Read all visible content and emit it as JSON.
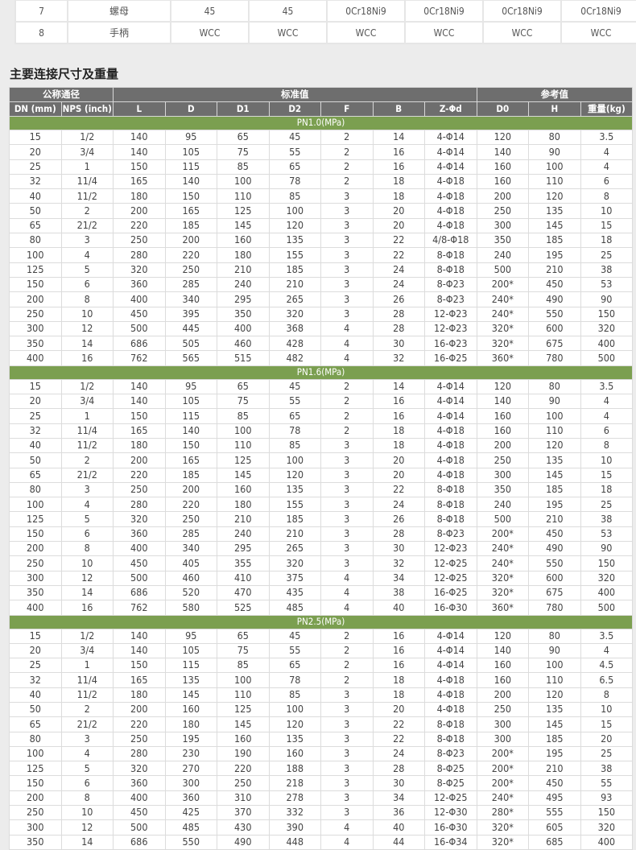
{
  "materials": {
    "rows": [
      [
        "7",
        "螺母",
        "45",
        "45",
        "0Cr18Ni9",
        "0Cr18Ni9",
        "0Cr18Ni9",
        "0Cr18Ni9"
      ],
      [
        "8",
        "手柄",
        "WCC",
        "WCC",
        "WCC",
        "WCC",
        "WCC",
        "WCC"
      ]
    ]
  },
  "section_title": "主要连接尺寸及重量",
  "dimensions": {
    "group_headers": {
      "nominal": "公称通径",
      "standard": "标准值",
      "reference": "参考值"
    },
    "columns": [
      "DN (mm)",
      "NPS (inch)",
      "L",
      "D",
      "D1",
      "D2",
      "F",
      "B",
      "Z-Φd",
      "D0",
      "H",
      "重量(kg)"
    ],
    "sections": [
      {
        "label": "PN1.0(MPa)",
        "rows": [
          [
            "15",
            "1/2",
            "140",
            "95",
            "65",
            "45",
            "2",
            "14",
            "4-Φ14",
            "120",
            "80",
            "3.5"
          ],
          [
            "20",
            "3/4",
            "140",
            "105",
            "75",
            "55",
            "2",
            "16",
            "4-Φ14",
            "140",
            "90",
            "4"
          ],
          [
            "25",
            "1",
            "150",
            "115",
            "85",
            "65",
            "2",
            "16",
            "4-Φ14",
            "160",
            "100",
            "4"
          ],
          [
            "32",
            "11/4",
            "165",
            "140",
            "100",
            "78",
            "2",
            "18",
            "4-Φ18",
            "160",
            "110",
            "6"
          ],
          [
            "40",
            "11/2",
            "180",
            "150",
            "110",
            "85",
            "3",
            "18",
            "4-Φ18",
            "200",
            "120",
            "8"
          ],
          [
            "50",
            "2",
            "200",
            "165",
            "125",
            "100",
            "3",
            "20",
            "4-Φ18",
            "250",
            "135",
            "10"
          ],
          [
            "65",
            "21/2",
            "220",
            "185",
            "145",
            "120",
            "3",
            "20",
            "4-Φ18",
            "300",
            "145",
            "15"
          ],
          [
            "80",
            "3",
            "250",
            "200",
            "160",
            "135",
            "3",
            "22",
            "4/8-Φ18",
            "350",
            "185",
            "18"
          ],
          [
            "100",
            "4",
            "280",
            "220",
            "180",
            "155",
            "3",
            "22",
            "8-Φ18",
            "240",
            "195",
            "25"
          ],
          [
            "125",
            "5",
            "320",
            "250",
            "210",
            "185",
            "3",
            "24",
            "8-Φ18",
            "500",
            "210",
            "38"
          ],
          [
            "150",
            "6",
            "360",
            "285",
            "240",
            "210",
            "3",
            "24",
            "8-Φ23",
            "200*",
            "450",
            "53"
          ],
          [
            "200",
            "8",
            "400",
            "340",
            "295",
            "265",
            "3",
            "26",
            "8-Φ23",
            "240*",
            "490",
            "90"
          ],
          [
            "250",
            "10",
            "450",
            "395",
            "350",
            "320",
            "3",
            "28",
            "12-Φ23",
            "240*",
            "550",
            "150"
          ],
          [
            "300",
            "12",
            "500",
            "445",
            "400",
            "368",
            "4",
            "28",
            "12-Φ23",
            "320*",
            "600",
            "320"
          ],
          [
            "350",
            "14",
            "686",
            "505",
            "460",
            "428",
            "4",
            "30",
            "16-Φ23",
            "320*",
            "675",
            "400"
          ],
          [
            "400",
            "16",
            "762",
            "565",
            "515",
            "482",
            "4",
            "32",
            "16-Φ25",
            "360*",
            "780",
            "500"
          ]
        ]
      },
      {
        "label": "PN1.6(MPa)",
        "rows": [
          [
            "15",
            "1/2",
            "140",
            "95",
            "65",
            "45",
            "2",
            "14",
            "4-Φ14",
            "120",
            "80",
            "3.5"
          ],
          [
            "20",
            "3/4",
            "140",
            "105",
            "75",
            "55",
            "2",
            "16",
            "4-Φ14",
            "140",
            "90",
            "4"
          ],
          [
            "25",
            "1",
            "150",
            "115",
            "85",
            "65",
            "2",
            "16",
            "4-Φ14",
            "160",
            "100",
            "4"
          ],
          [
            "32",
            "11/4",
            "165",
            "140",
            "100",
            "78",
            "2",
            "18",
            "4-Φ18",
            "160",
            "110",
            "6"
          ],
          [
            "40",
            "11/2",
            "180",
            "150",
            "110",
            "85",
            "3",
            "18",
            "4-Φ18",
            "200",
            "120",
            "8"
          ],
          [
            "50",
            "2",
            "200",
            "165",
            "125",
            "100",
            "3",
            "20",
            "4-Φ18",
            "250",
            "135",
            "10"
          ],
          [
            "65",
            "21/2",
            "220",
            "185",
            "145",
            "120",
            "3",
            "20",
            "4-Φ18",
            "300",
            "145",
            "15"
          ],
          [
            "80",
            "3",
            "250",
            "200",
            "160",
            "135",
            "3",
            "22",
            "8-Φ18",
            "350",
            "185",
            "18"
          ],
          [
            "100",
            "4",
            "280",
            "220",
            "180",
            "155",
            "3",
            "24",
            "8-Φ18",
            "240",
            "195",
            "25"
          ],
          [
            "125",
            "5",
            "320",
            "250",
            "210",
            "185",
            "3",
            "26",
            "8-Φ18",
            "500",
            "210",
            "38"
          ],
          [
            "150",
            "6",
            "360",
            "285",
            "240",
            "210",
            "3",
            "28",
            "8-Φ23",
            "200*",
            "450",
            "53"
          ],
          [
            "200",
            "8",
            "400",
            "340",
            "295",
            "265",
            "3",
            "30",
            "12-Φ23",
            "240*",
            "490",
            "90"
          ],
          [
            "250",
            "10",
            "450",
            "405",
            "355",
            "320",
            "3",
            "32",
            "12-Φ25",
            "240*",
            "550",
            "150"
          ],
          [
            "300",
            "12",
            "500",
            "460",
            "410",
            "375",
            "4",
            "34",
            "12-Φ25",
            "320*",
            "600",
            "320"
          ],
          [
            "350",
            "14",
            "686",
            "520",
            "470",
            "435",
            "4",
            "38",
            "16-Φ25",
            "320*",
            "675",
            "400"
          ],
          [
            "400",
            "16",
            "762",
            "580",
            "525",
            "485",
            "4",
            "40",
            "16-Φ30",
            "360*",
            "780",
            "500"
          ]
        ]
      },
      {
        "label": "PN2.5(MPa)",
        "rows": [
          [
            "15",
            "1/2",
            "140",
            "95",
            "65",
            "45",
            "2",
            "16",
            "4-Φ14",
            "120",
            "80",
            "3.5"
          ],
          [
            "20",
            "3/4",
            "140",
            "105",
            "75",
            "55",
            "2",
            "16",
            "4-Φ14",
            "140",
            "90",
            "4"
          ],
          [
            "25",
            "1",
            "150",
            "115",
            "85",
            "65",
            "2",
            "16",
            "4-Φ14",
            "160",
            "100",
            "4.5"
          ],
          [
            "32",
            "11/4",
            "165",
            "135",
            "100",
            "78",
            "2",
            "18",
            "4-Φ18",
            "160",
            "110",
            "6.5"
          ],
          [
            "40",
            "11/2",
            "180",
            "145",
            "110",
            "85",
            "3",
            "18",
            "4-Φ18",
            "200",
            "120",
            "8"
          ],
          [
            "50",
            "2",
            "200",
            "160",
            "125",
            "100",
            "3",
            "20",
            "4-Φ18",
            "250",
            "135",
            "10"
          ],
          [
            "65",
            "21/2",
            "220",
            "180",
            "145",
            "120",
            "3",
            "22",
            "8-Φ18",
            "300",
            "145",
            "15"
          ],
          [
            "80",
            "3",
            "250",
            "195",
            "160",
            "135",
            "3",
            "22",
            "8-Φ18",
            "300",
            "185",
            "20"
          ],
          [
            "100",
            "4",
            "280",
            "230",
            "190",
            "160",
            "3",
            "24",
            "8-Φ23",
            "200*",
            "195",
            "25"
          ],
          [
            "125",
            "5",
            "320",
            "270",
            "220",
            "188",
            "3",
            "28",
            "8-Φ25",
            "200*",
            "210",
            "38"
          ],
          [
            "150",
            "6",
            "360",
            "300",
            "250",
            "218",
            "3",
            "30",
            "8-Φ25",
            "200*",
            "450",
            "55"
          ],
          [
            "200",
            "8",
            "400",
            "360",
            "310",
            "278",
            "3",
            "34",
            "12-Φ25",
            "240*",
            "495",
            "93"
          ],
          [
            "250",
            "10",
            "450",
            "425",
            "370",
            "332",
            "3",
            "36",
            "12-Φ30",
            "280*",
            "555",
            "150"
          ],
          [
            "300",
            "12",
            "500",
            "485",
            "430",
            "390",
            "4",
            "40",
            "16-Φ30",
            "320*",
            "605",
            "320"
          ],
          [
            "350",
            "14",
            "686",
            "550",
            "490",
            "448",
            "4",
            "44",
            "16-Φ34",
            "320*",
            "685",
            "400"
          ]
        ]
      }
    ]
  },
  "colors": {
    "header_gray": "#6e6e6e",
    "section_green": "#7b9f50",
    "background": "#ececec"
  }
}
